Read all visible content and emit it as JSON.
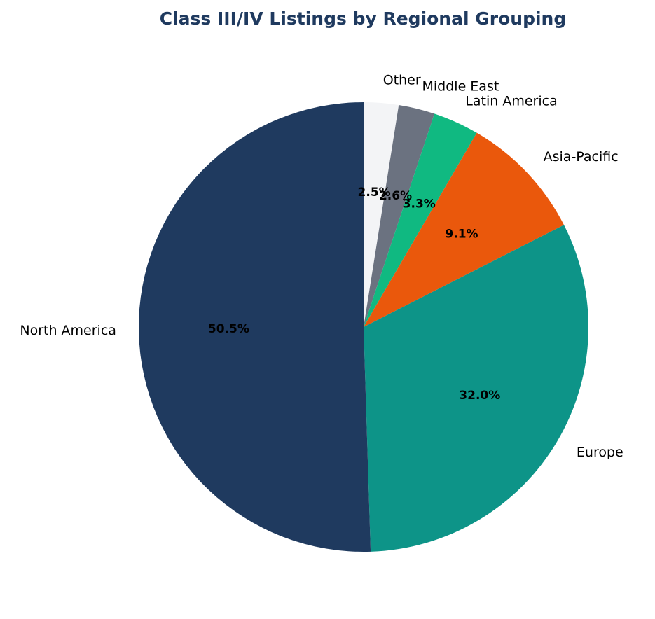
{
  "chart_data": {
    "type": "pie",
    "title": "Class III/IV Listings by Regional Grouping",
    "start_angle_deg": 90,
    "direction": "clockwise",
    "slices": [
      {
        "label": "Other",
        "value": 2.5,
        "pct_text": "2.5%",
        "color": "#f3f4f6"
      },
      {
        "label": "Middle East",
        "value": 2.6,
        "pct_text": "2.6%",
        "color": "#6b7280"
      },
      {
        "label": "Latin America",
        "value": 3.3,
        "pct_text": "3.3%",
        "color": "#10b981"
      },
      {
        "label": "Asia-Pacific",
        "value": 9.1,
        "pct_text": "9.1%",
        "color": "#ea580c"
      },
      {
        "label": "Europe",
        "value": 32.0,
        "pct_text": "32.0%",
        "color": "#0d9488"
      },
      {
        "label": "North America",
        "value": 50.5,
        "pct_text": "50.5%",
        "color": "#1f3a5f"
      }
    ]
  }
}
